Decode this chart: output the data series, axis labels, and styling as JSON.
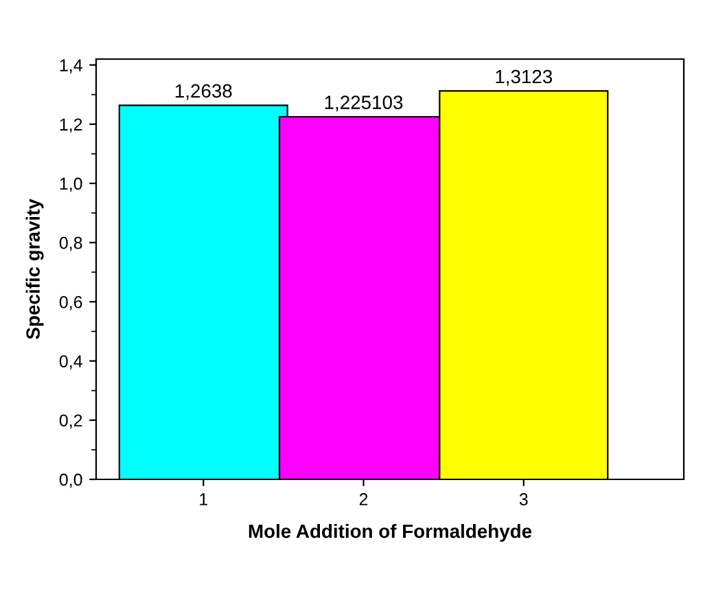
{
  "chart_data": {
    "type": "bar",
    "xlabel": "Mole Addition of Formaldehyde",
    "ylabel": "Specific gravity",
    "categories": [
      "1",
      "2",
      "3"
    ],
    "values": [
      1.2638,
      1.225103,
      1.3123
    ],
    "colors": [
      "#00ffff",
      "#ff00ff",
      "#ffff00"
    ],
    "value_labels": [
      "1,2638",
      "1,225103",
      "1,3123"
    ],
    "ylim": [
      0,
      1.42
    ],
    "yticks": [
      {
        "value": 0,
        "label": "0,0"
      },
      {
        "value": 0.2,
        "label": "0,2"
      },
      {
        "value": 0.4,
        "label": "0,4"
      },
      {
        "value": 0.6,
        "label": "0,6"
      },
      {
        "value": 0.8,
        "label": "0,8"
      },
      {
        "value": 1.0,
        "label": "1,0"
      },
      {
        "value": 1.2,
        "label": "1,2"
      },
      {
        "value": 1.4,
        "label": "1,4"
      }
    ],
    "grid": false,
    "legend": false
  }
}
